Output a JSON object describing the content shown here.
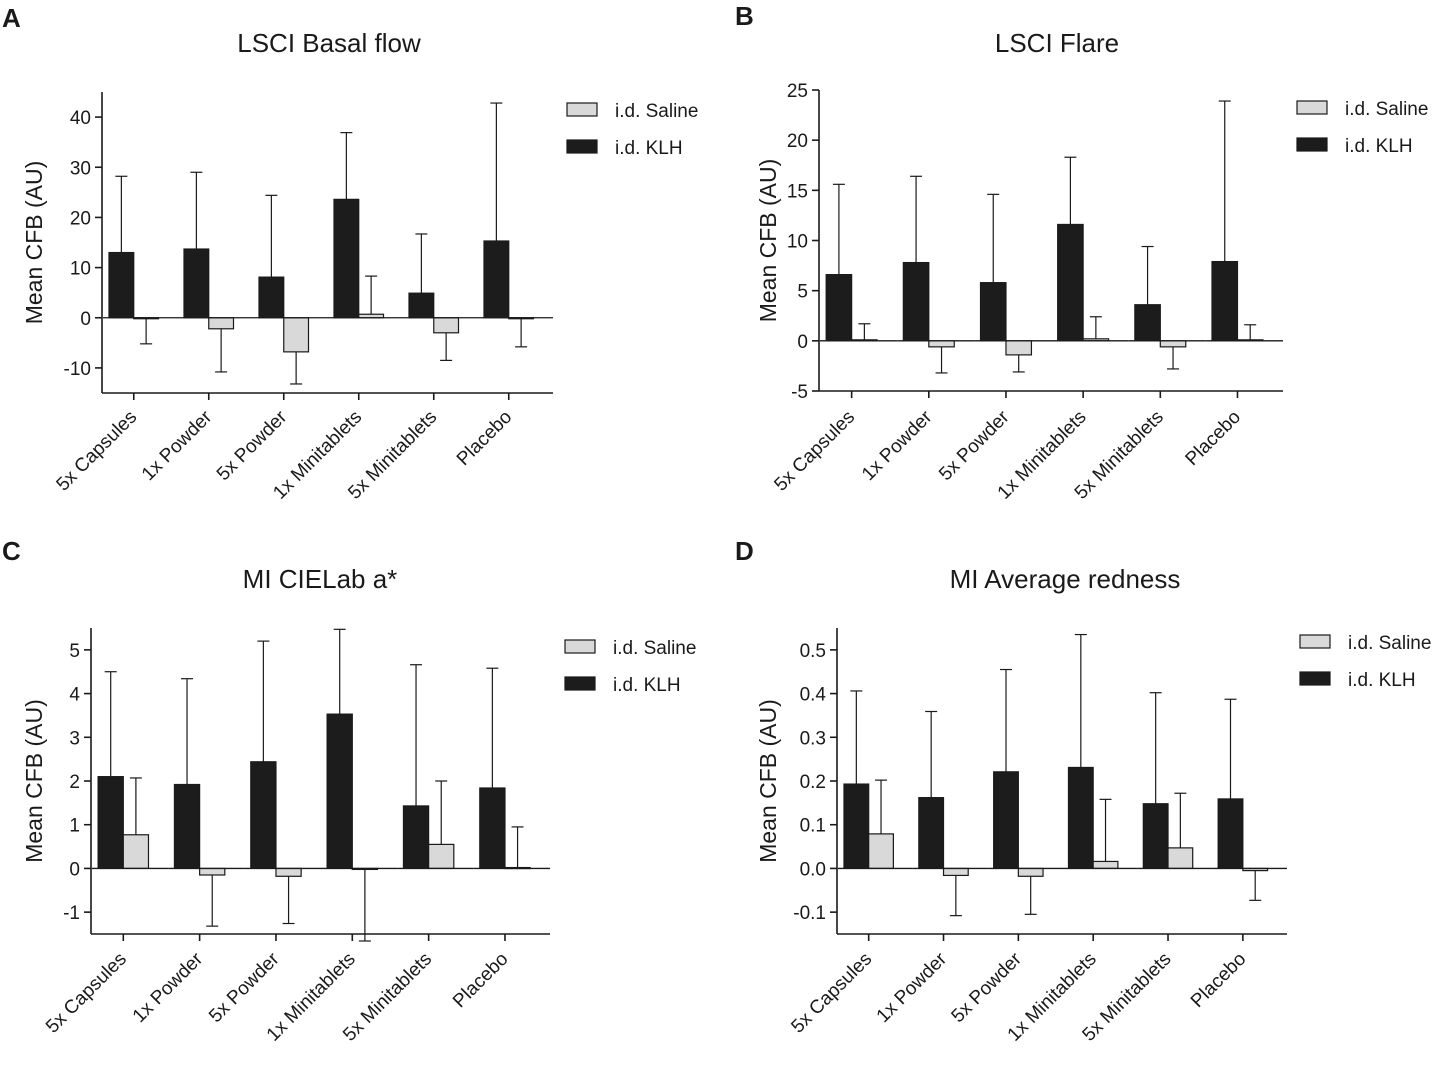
{
  "colors": {
    "saline": "#d9d9d9",
    "klh": "#1c1c1c",
    "axis": "#1a1a1a"
  },
  "chart_data": [
    {
      "panel": "A",
      "type": "bar",
      "title": "LSCI Basal flow",
      "xlabel": "",
      "ylabel": "Mean CFB (AU)",
      "ylim": [
        -15,
        45
      ],
      "yticks": [
        -10,
        0,
        10,
        20,
        30,
        40
      ],
      "ytick_labels": [
        "-10",
        "0",
        "10",
        "20",
        "30",
        "40"
      ],
      "categories": [
        "5x Capsules",
        "1x Powder",
        "5x Powder",
        "1x Minitablets",
        "5x Minitablets",
        "Placebo"
      ],
      "series": [
        {
          "name": "i.d. KLH",
          "key": "klh",
          "values": [
            13.0,
            13.7,
            8.1,
            23.6,
            4.9,
            15.3
          ],
          "errors": [
            15.2,
            15.3,
            16.3,
            13.3,
            11.8,
            27.5
          ]
        },
        {
          "name": "i.d. Saline",
          "key": "saline",
          "values": [
            -0.2,
            -2.2,
            -6.8,
            0.7,
            -3.0,
            -0.2
          ],
          "errors": [
            5.0,
            8.6,
            6.4,
            7.6,
            5.5,
            5.6
          ]
        }
      ],
      "legend": [
        "i.d. Saline",
        "i.d. KLH"
      ],
      "legend_position": "top-right"
    },
    {
      "panel": "B",
      "type": "bar",
      "title": "LSCI Flare",
      "xlabel": "",
      "ylabel": "Mean CFB (AU)",
      "ylim": [
        -5,
        25
      ],
      "yticks": [
        -5,
        0,
        5,
        10,
        15,
        20,
        25
      ],
      "ytick_labels": [
        "-5",
        "0",
        "5",
        "10",
        "15",
        "20",
        "25"
      ],
      "categories": [
        "5x Capsules",
        "1x Powder",
        "5x Powder",
        "1x Minitablets",
        "5x Minitablets",
        "Placebo"
      ],
      "series": [
        {
          "name": "i.d. KLH",
          "key": "klh",
          "values": [
            6.6,
            7.8,
            5.8,
            11.6,
            3.6,
            7.9
          ],
          "errors": [
            9.0,
            8.6,
            8.8,
            6.7,
            5.8,
            16.0
          ]
        },
        {
          "name": "i.d. Saline",
          "key": "saline",
          "values": [
            0.1,
            -0.6,
            -1.4,
            0.2,
            -0.6,
            0.1
          ],
          "errors": [
            1.6,
            2.6,
            1.7,
            2.2,
            2.2,
            1.5
          ]
        }
      ],
      "legend": [
        "i.d. Saline",
        "i.d. KLH"
      ],
      "legend_position": "top-right"
    },
    {
      "panel": "C",
      "type": "bar",
      "title": "MI CIELab a*",
      "xlabel": "",
      "ylabel": "Mean CFB (AU)",
      "ylim": [
        -1.5,
        5.5
      ],
      "yticks": [
        -1,
        0,
        1,
        2,
        3,
        4,
        5
      ],
      "ytick_labels": [
        "-1",
        "0",
        "1",
        "2",
        "3",
        "4",
        "5"
      ],
      "categories": [
        "5x Capsules",
        "1x Powder",
        "5x Powder",
        "1x Minitablets",
        "5x Minitablets",
        "Placebo"
      ],
      "series": [
        {
          "name": "i.d. KLH",
          "key": "klh",
          "values": [
            2.1,
            1.92,
            2.44,
            3.53,
            1.43,
            1.84
          ],
          "errors": [
            2.4,
            2.42,
            2.76,
            1.94,
            3.23,
            2.74
          ]
        },
        {
          "name": "i.d. Saline",
          "key": "saline",
          "values": [
            0.77,
            -0.15,
            -0.18,
            -0.02,
            0.55,
            0.02
          ],
          "errors": [
            1.3,
            1.17,
            1.08,
            1.64,
            1.45,
            0.93
          ]
        }
      ],
      "legend": [
        "i.d. Saline",
        "i.d. KLH"
      ],
      "legend_position": "top-right"
    },
    {
      "panel": "D",
      "type": "bar",
      "title": "MI Average redness",
      "xlabel": "",
      "ylabel": "Mean CFB (AU)",
      "ylim": [
        -0.15,
        0.55
      ],
      "yticks": [
        -0.1,
        0.0,
        0.1,
        0.2,
        0.3,
        0.4,
        0.5
      ],
      "ytick_labels": [
        "-0.1",
        "0.0",
        "0.1",
        "0.2",
        "0.3",
        "0.4",
        "0.5"
      ],
      "categories": [
        "5x Capsules",
        "1x Powder",
        "5x Powder",
        "1x Minitablets",
        "5x Minitablets",
        "Placebo"
      ],
      "series": [
        {
          "name": "i.d. KLH",
          "key": "klh",
          "values": [
            0.193,
            0.162,
            0.221,
            0.231,
            0.148,
            0.159
          ],
          "errors": [
            0.213,
            0.197,
            0.234,
            0.304,
            0.254,
            0.228
          ]
        },
        {
          "name": "i.d. Saline",
          "key": "saline",
          "values": [
            0.079,
            -0.016,
            -0.018,
            0.016,
            0.047,
            -0.005
          ],
          "errors": [
            0.123,
            0.092,
            0.087,
            0.142,
            0.125,
            0.068
          ]
        }
      ],
      "legend": [
        "i.d. Saline",
        "i.d. KLH"
      ],
      "legend_position": "top-right"
    }
  ]
}
